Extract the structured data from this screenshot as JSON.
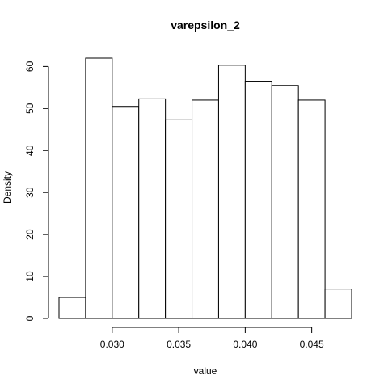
{
  "chart_data": {
    "type": "bar",
    "title": "varepsilon_2",
    "xlabel": "value",
    "ylabel": "Density",
    "bins": [
      {
        "x0": 0.026,
        "x1": 0.028,
        "value": 5
      },
      {
        "x0": 0.028,
        "x1": 0.03,
        "value": 62
      },
      {
        "x0": 0.03,
        "x1": 0.032,
        "value": 50.5
      },
      {
        "x0": 0.032,
        "x1": 0.034,
        "value": 52.3
      },
      {
        "x0": 0.034,
        "x1": 0.036,
        "value": 47.3
      },
      {
        "x0": 0.036,
        "x1": 0.038,
        "value": 52
      },
      {
        "x0": 0.038,
        "x1": 0.04,
        "value": 60.3
      },
      {
        "x0": 0.04,
        "x1": 0.042,
        "value": 56.5
      },
      {
        "x0": 0.042,
        "x1": 0.044,
        "value": 55.5
      },
      {
        "x0": 0.044,
        "x1": 0.046,
        "value": 52
      },
      {
        "x0": 0.046,
        "x1": 0.048,
        "value": 7
      }
    ],
    "xlim": [
      0.026,
      0.048
    ],
    "ylim": [
      0,
      62
    ],
    "xticks": [
      {
        "value": 0.03,
        "label": "0.030"
      },
      {
        "value": 0.035,
        "label": "0.035"
      },
      {
        "value": 0.04,
        "label": "0.040"
      },
      {
        "value": 0.045,
        "label": "0.045"
      }
    ],
    "yticks": [
      {
        "value": 0,
        "label": "0"
      },
      {
        "value": 10,
        "label": "10"
      },
      {
        "value": 20,
        "label": "20"
      },
      {
        "value": 30,
        "label": "30"
      },
      {
        "value": 40,
        "label": "40"
      },
      {
        "value": 50,
        "label": "50"
      },
      {
        "value": 60,
        "label": "60"
      }
    ],
    "grid": false,
    "legend": "none"
  }
}
